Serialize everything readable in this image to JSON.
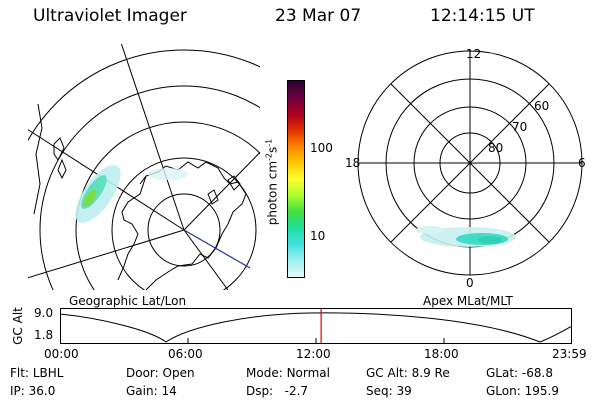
{
  "header": {
    "instrument": "Ultraviolet Imager",
    "date": "23 Mar 07",
    "time": "12:14:15 UT"
  },
  "left_map": {
    "caption": "Geographic Lat/Lon"
  },
  "right_map": {
    "caption": "Apex MLat/MLT",
    "mlt_labels": {
      "top": "12",
      "left": "18",
      "right": "6",
      "bottom": "0"
    },
    "lat_labels": [
      "60",
      "70",
      "80"
    ]
  },
  "colorbar": {
    "unit_label": "photon cm",
    "unit_sup1": "-2",
    "unit_s": "s",
    "unit_sup2": "-1",
    "ticks": [
      "100",
      "10"
    ],
    "colors": [
      "#2a0030",
      "#6a0040",
      "#b00020",
      "#e03000",
      "#ff8000",
      "#ffc800",
      "#ffff30",
      "#b0ff30",
      "#40e040",
      "#20e0a0",
      "#40e0e0",
      "#a0f0f0",
      "#e8f8f8"
    ]
  },
  "timeline": {
    "ylabel": "GC Alt",
    "yticks": [
      "9.0",
      "1.8"
    ],
    "xticks": [
      "00:00",
      "06:00",
      "12:00",
      "18:00",
      "23:59"
    ],
    "current_hour": 12.24
  },
  "footer": {
    "flt_label": "Flt:",
    "flt_value": "LBHL",
    "ip_label": "IP:",
    "ip_value": "36.0",
    "door_label": "Door:",
    "door_value": "Open",
    "gain_label": "Gain:",
    "gain_value": "14",
    "mode_label": "Mode:",
    "mode_value": "Normal",
    "dsp_label": "Dsp:",
    "dsp_value": "-2.7",
    "gcalt_label": "GC Alt:",
    "gcalt_value": "8.9 Re",
    "seq_label": "Seq:",
    "seq_value": "39",
    "glat_label": "GLat:",
    "glat_value": "-68.8",
    "glon_label": "GLon:",
    "glon_value": "195.9"
  }
}
